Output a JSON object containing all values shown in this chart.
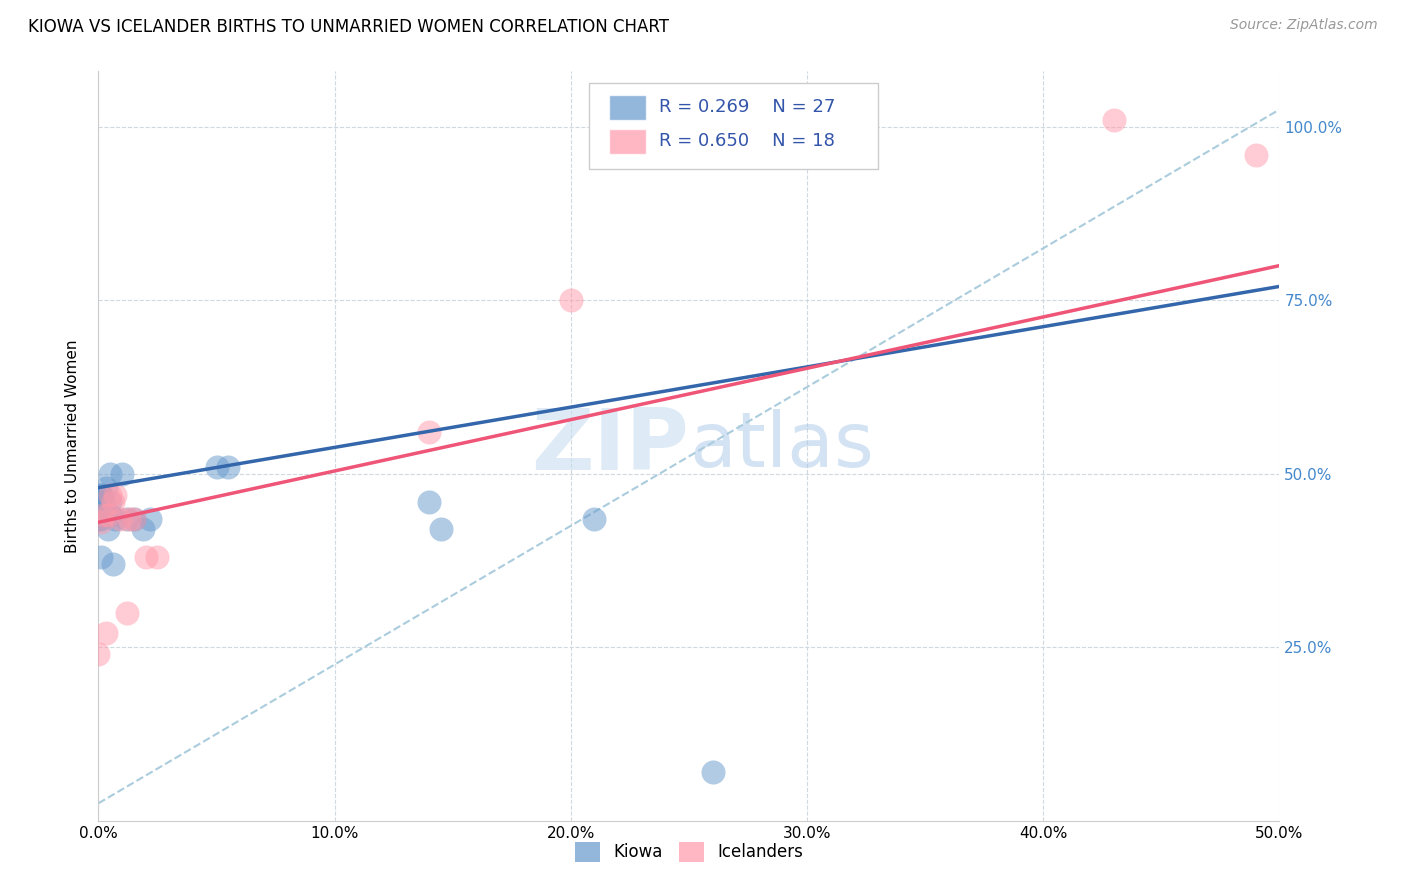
{
  "title": "KIOWA VS ICELANDER BIRTHS TO UNMARRIED WOMEN CORRELATION CHART",
  "source": "Source: ZipAtlas.com",
  "ylabel": "Births to Unmarried Women",
  "xlabel": "",
  "xlim": [
    0.0,
    0.5
  ],
  "ylim": [
    0.0,
    1.08
  ],
  "xtick_labels": [
    "0.0%",
    "10.0%",
    "20.0%",
    "30.0%",
    "40.0%",
    "50.0%"
  ],
  "xtick_vals": [
    0.0,
    0.1,
    0.2,
    0.3,
    0.4,
    0.5
  ],
  "ytick_labels": [
    "25.0%",
    "50.0%",
    "75.0%",
    "100.0%"
  ],
  "ytick_vals": [
    0.25,
    0.5,
    0.75,
    1.0
  ],
  "kiowa_color": "#6699cc",
  "icelander_color": "#ff99aa",
  "kiowa_R": 0.269,
  "kiowa_N": 27,
  "icelander_R": 0.65,
  "icelander_N": 18,
  "background_color": "#ffffff",
  "grid_color": "#d0d8e0",
  "watermark": "ZIPatlas",
  "kiowa_x": [
    0.0,
    0.0,
    0.0,
    0.001,
    0.001,
    0.001,
    0.001,
    0.002,
    0.002,
    0.003,
    0.004,
    0.005,
    0.005,
    0.005,
    0.006,
    0.007,
    0.01,
    0.012,
    0.015,
    0.019,
    0.022,
    0.05,
    0.055,
    0.14,
    0.145,
    0.21,
    0.26
  ],
  "kiowa_y": [
    0.435,
    0.44,
    0.46,
    0.47,
    0.47,
    0.38,
    0.435,
    0.44,
    0.46,
    0.48,
    0.42,
    0.44,
    0.46,
    0.5,
    0.37,
    0.435,
    0.5,
    0.435,
    0.435,
    0.42,
    0.435,
    0.51,
    0.51,
    0.46,
    0.42,
    0.435,
    0.07
  ],
  "icelander_x": [
    0.0,
    0.001,
    0.002,
    0.003,
    0.004,
    0.005,
    0.006,
    0.007,
    0.009,
    0.012,
    0.013,
    0.015,
    0.02,
    0.025,
    0.14,
    0.2,
    0.43,
    0.49
  ],
  "icelander_y": [
    0.24,
    0.43,
    0.44,
    0.27,
    0.44,
    0.47,
    0.46,
    0.47,
    0.435,
    0.3,
    0.435,
    0.435,
    0.38,
    0.38,
    0.56,
    0.75,
    1.01,
    0.96
  ],
  "title_fontsize": 12,
  "axis_label_fontsize": 11,
  "tick_fontsize": 11,
  "legend_fontsize": 13,
  "source_fontsize": 10
}
